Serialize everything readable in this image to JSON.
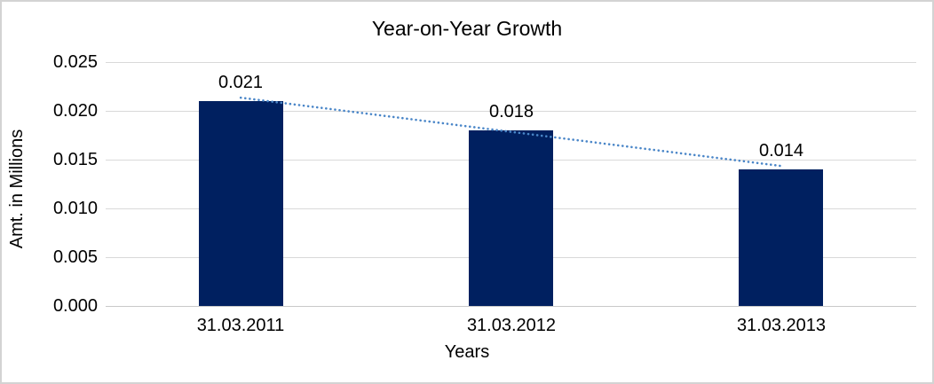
{
  "chart_data": {
    "type": "bar",
    "title": "Year-on-Year Growth",
    "xlabel": "Years",
    "ylabel": "Amt. in Millions",
    "categories": [
      "31.03.2011",
      "31.03.2012",
      "31.03.2013"
    ],
    "values": [
      0.021,
      0.018,
      0.014
    ],
    "data_labels": [
      "0.021",
      "0.018",
      "0.014"
    ],
    "ylim": [
      0,
      0.025
    ],
    "yticks": [
      0,
      0.005,
      0.01,
      0.015,
      0.02,
      0.025
    ],
    "ytick_labels": [
      "0.000",
      "0.005",
      "0.010",
      "0.015",
      "0.020",
      "0.025"
    ],
    "grid": true,
    "legend_position": "none",
    "trendline": {
      "type": "linear",
      "style": "dotted",
      "span": "first-to-last-category"
    },
    "colors": {
      "bar": "#002060",
      "trendline": "#4A86C8",
      "gridline": "#D9D9D9",
      "axis_line": "#C9C9C9",
      "text": "#000000",
      "border": "#D3D3D3",
      "background": "#FFFFFF"
    }
  }
}
